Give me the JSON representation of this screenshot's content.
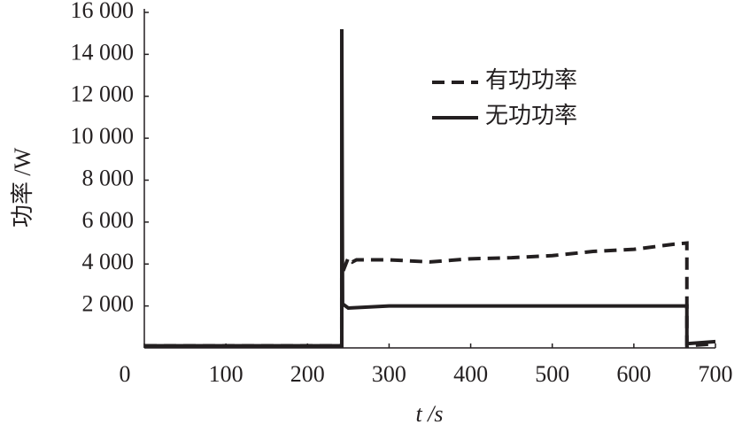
{
  "chart_data": {
    "type": "line",
    "xlabel": "t /s",
    "ylabel": "功率 /W",
    "xlim": [
      0,
      700
    ],
    "xticks": [
      0,
      100,
      200,
      300,
      400,
      500,
      600,
      700
    ],
    "ylim": [
      0,
      16000
    ],
    "yticks": [
      {
        "value": 2000,
        "label": "2 000"
      },
      {
        "value": 4000,
        "label": "4 000"
      },
      {
        "value": 6000,
        "label": "6 000"
      },
      {
        "value": 8000,
        "label": "8 000"
      },
      {
        "value": 10000,
        "label": "10 000"
      },
      {
        "value": 12000,
        "label": "12 000"
      },
      {
        "value": 14000,
        "label": "14 000"
      },
      {
        "value": 16000,
        "label": "16 000"
      }
    ],
    "legend": "upper right",
    "series": [
      {
        "name": "有功功率",
        "color": "#231f20",
        "dash": true,
        "x": [
          0,
          242,
          242,
          250,
          255,
          260,
          300,
          350,
          400,
          450,
          500,
          550,
          600,
          650,
          665,
          665,
          700
        ],
        "values": [
          100,
          100,
          3500,
          4300,
          4100,
          4200,
          4200,
          4100,
          4250,
          4300,
          4400,
          4600,
          4700,
          4950,
          5000,
          100,
          200
        ]
      },
      {
        "name": "无功功率",
        "color": "#231f20",
        "dash": false,
        "x": [
          0,
          242,
          242,
          243,
          250,
          300,
          450,
          665,
          665,
          700
        ],
        "values": [
          100,
          100,
          15200,
          2100,
          1900,
          2000,
          2000,
          2000,
          200,
          300
        ]
      }
    ]
  }
}
